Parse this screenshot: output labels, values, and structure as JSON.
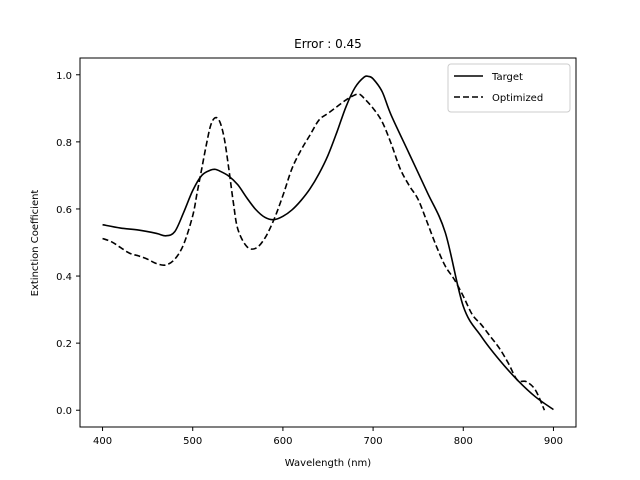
{
  "chart_data": {
    "type": "line",
    "title": "Error : 0.45",
    "xlabel": "Wavelength (nm)",
    "ylabel": "Extinction Coefficient",
    "xlim": [
      375,
      925
    ],
    "ylim": [
      -0.05,
      1.05
    ],
    "xticks": [
      400,
      500,
      600,
      700,
      800,
      900
    ],
    "yticks": [
      0.0,
      0.2,
      0.4,
      0.6,
      0.8,
      1.0
    ],
    "xtick_labels": [
      "400",
      "500",
      "600",
      "700",
      "800",
      "900"
    ],
    "ytick_labels": [
      "0.0",
      "0.2",
      "0.4",
      "0.6",
      "0.8",
      "1.0"
    ],
    "grid": false,
    "legend_position": "top-right",
    "series": [
      {
        "name": "Target",
        "style": "solid",
        "color": "#000000",
        "x": [
          400,
          420,
          440,
          460,
          470,
          480,
          490,
          500,
          510,
          520,
          525,
          530,
          540,
          550,
          560,
          570,
          580,
          590,
          600,
          610,
          620,
          630,
          640,
          650,
          660,
          670,
          680,
          690,
          695,
          700,
          710,
          720,
          740,
          760,
          780,
          800,
          820,
          840,
          860,
          880,
          900
        ],
        "y": [
          0.553,
          0.543,
          0.537,
          0.527,
          0.52,
          0.532,
          0.59,
          0.655,
          0.7,
          0.716,
          0.718,
          0.713,
          0.698,
          0.672,
          0.633,
          0.598,
          0.575,
          0.568,
          0.578,
          0.597,
          0.625,
          0.66,
          0.705,
          0.76,
          0.83,
          0.905,
          0.962,
          0.993,
          0.995,
          0.988,
          0.95,
          0.88,
          0.765,
          0.65,
          0.53,
          0.31,
          0.22,
          0.15,
          0.09,
          0.04,
          0.002
        ]
      },
      {
        "name": "Optimized",
        "style": "dashed",
        "color": "#000000",
        "x": [
          400,
          410,
          420,
          430,
          440,
          450,
          460,
          470,
          480,
          490,
          500,
          505,
          510,
          515,
          520,
          525,
          530,
          535,
          540,
          545,
          550,
          560,
          570,
          580,
          590,
          600,
          610,
          620,
          630,
          640,
          650,
          660,
          670,
          680,
          685,
          690,
          700,
          710,
          720,
          730,
          740,
          750,
          760,
          770,
          780,
          790,
          800,
          810,
          820,
          830,
          840,
          850,
          860,
          870,
          880,
          890
        ],
        "y": [
          0.512,
          0.502,
          0.485,
          0.468,
          0.46,
          0.45,
          0.437,
          0.433,
          0.45,
          0.495,
          0.58,
          0.65,
          0.72,
          0.79,
          0.85,
          0.872,
          0.86,
          0.81,
          0.72,
          0.62,
          0.54,
          0.488,
          0.483,
          0.513,
          0.568,
          0.64,
          0.72,
          0.775,
          0.82,
          0.865,
          0.885,
          0.905,
          0.925,
          0.94,
          0.942,
          0.93,
          0.9,
          0.86,
          0.795,
          0.72,
          0.67,
          0.628,
          0.56,
          0.49,
          0.43,
          0.39,
          0.34,
          0.285,
          0.255,
          0.22,
          0.185,
          0.14,
          0.09,
          0.085,
          0.06,
          0.0
        ]
      }
    ]
  }
}
